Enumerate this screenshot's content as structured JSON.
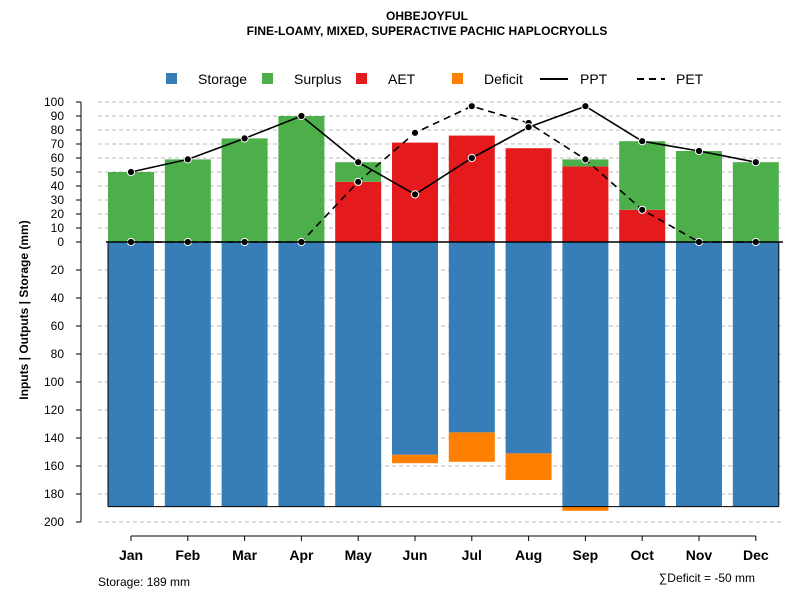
{
  "chart_data": {
    "type": "bar",
    "title": "OHBEJOYFUL",
    "subtitle": "FINE-LOAMY, MIXED, SUPERACTIVE PACHIC HAPLOCRYOLLS",
    "ylabel": "Inputs | Outputs | Storage     (mm)",
    "categories": [
      "Jan",
      "Feb",
      "Mar",
      "Apr",
      "May",
      "Jun",
      "Jul",
      "Aug",
      "Sep",
      "Oct",
      "Nov",
      "Dec"
    ],
    "upper_ticks": [
      "0",
      "10",
      "20",
      "30",
      "40",
      "50",
      "60",
      "70",
      "80",
      "90",
      "100"
    ],
    "lower_ticks": [
      "20",
      "40",
      "60",
      "80",
      "100",
      "120",
      "140",
      "160",
      "180",
      "200"
    ],
    "ylim_upper": [
      0,
      100
    ],
    "ylim_lower": [
      0,
      200
    ],
    "legend": [
      "Storage",
      "Surplus",
      "AET",
      "Deficit",
      "PPT",
      "PET"
    ],
    "legend_position": "top",
    "grid": true,
    "series": [
      {
        "name": "AET",
        "values": [
          0,
          0,
          0,
          0,
          43,
          71,
          76,
          67,
          54,
          23,
          0,
          0
        ]
      },
      {
        "name": "Surplus",
        "values": [
          50,
          59,
          74,
          90,
          14,
          0,
          0,
          0,
          5,
          49,
          65,
          57
        ]
      },
      {
        "name": "Storage",
        "values": [
          189,
          189,
          189,
          189,
          189,
          152,
          136,
          151,
          189,
          189,
          189,
          189
        ]
      },
      {
        "name": "Deficit",
        "values": [
          0,
          0,
          0,
          0,
          0,
          6,
          21,
          19,
          3,
          0,
          0,
          0
        ]
      },
      {
        "name": "PPT",
        "values": [
          50,
          59,
          74,
          90,
          57,
          34,
          60,
          82,
          97,
          72,
          65,
          57
        ]
      },
      {
        "name": "PET",
        "values": [
          0,
          0,
          0,
          0,
          43,
          78,
          97,
          85,
          59,
          23,
          0,
          0
        ]
      }
    ],
    "colors": {
      "storage": "#377EB8",
      "surplus": "#4DAF4A",
      "aet": "#E41A1C",
      "deficit": "#FF7F00",
      "lines": "#000000",
      "grid": "#bbbbbb"
    },
    "storage_note": "Storage: 189 mm",
    "deficit_note": "∑Deficit = -50 mm"
  }
}
